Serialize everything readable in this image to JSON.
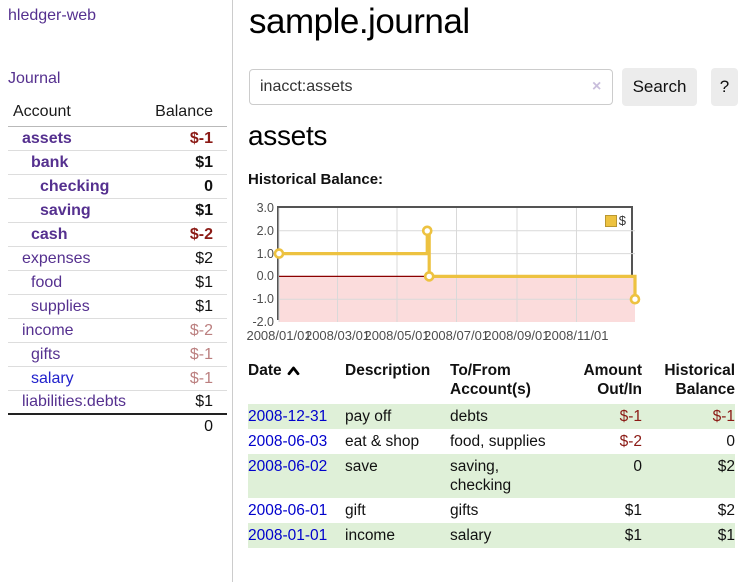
{
  "sidebar": {
    "app_title": "hledger-web",
    "nav": {
      "journal": "Journal"
    },
    "table": {
      "col_account": "Account",
      "col_balance": "Balance",
      "accounts": [
        {
          "name": "assets",
          "balance": "$-1"
        },
        {
          "name": "bank",
          "balance": "$1"
        },
        {
          "name": "checking",
          "balance": "0"
        },
        {
          "name": "saving",
          "balance": "$1"
        },
        {
          "name": "cash",
          "balance": "$-2"
        },
        {
          "name": "expenses",
          "balance": "$2"
        },
        {
          "name": "food",
          "balance": "$1"
        },
        {
          "name": "supplies",
          "balance": "$1"
        },
        {
          "name": "income",
          "balance": "$-2"
        },
        {
          "name": "gifts",
          "balance": "$-1"
        },
        {
          "name": "salary",
          "balance": "$-1"
        },
        {
          "name": "liabilities:debts",
          "balance": "$1"
        }
      ],
      "total": "0"
    }
  },
  "main": {
    "title": "sample.journal",
    "search": {
      "value": "inacct:assets",
      "clear_icon": "×",
      "search_button": "Search",
      "help_button": "?"
    },
    "account_heading": "assets"
  },
  "chart_data": {
    "type": "line",
    "style": "step",
    "title": "Historical Balance:",
    "xlabel": "",
    "ylabel": "",
    "grid": true,
    "ylim": [
      -2,
      3
    ],
    "x_range": [
      "2008-01-01",
      "2008-12-31"
    ],
    "series": [
      {
        "name": "$",
        "color": "#edc240",
        "points": [
          [
            "2008-01-01",
            1
          ],
          [
            "2008-06-01",
            2
          ],
          [
            "2008-06-03",
            0
          ],
          [
            "2008-12-31",
            -1
          ]
        ]
      }
    ],
    "x_ticks": [
      {
        "date": "2008-01-01",
        "label": "2008/01/01"
      },
      {
        "date": "2008-03-01",
        "label": "2008/03/01"
      },
      {
        "date": "2008-05-01",
        "label": "2008/05/01"
      },
      {
        "date": "2008-07-01",
        "label": "2008/07/01"
      },
      {
        "date": "2008-09-01",
        "label": "2008/09/01"
      },
      {
        "date": "2008-11-01",
        "label": "2008/11/01"
      }
    ],
    "y_ticks": [
      {
        "v": 3,
        "label": "3.0"
      },
      {
        "v": 2,
        "label": "2.0"
      },
      {
        "v": 1,
        "label": "1.0"
      },
      {
        "v": 0,
        "label": "0.0"
      },
      {
        "v": -1,
        "label": "-1.0"
      },
      {
        "v": -2,
        "label": "-2.0"
      }
    ],
    "legend": {
      "label": "$",
      "position": "top-right",
      "swatch_color": "#edc240"
    },
    "zero_line_color": "#8b0000",
    "negative_fill_color": "#fbdcdc"
  },
  "register": {
    "headers": {
      "date": "Date",
      "description": "Description",
      "tofrom_line1": "To/From",
      "tofrom_line2": "Account(s)",
      "amount_line1": "Amount",
      "amount_line2": "Out/In",
      "balance_line1": "Historical",
      "balance_line2": "Balance"
    },
    "sort_icon": "chevron-up",
    "rows": [
      {
        "date": "2008-12-31",
        "description": "pay off",
        "accounts": "debts",
        "amount": "$-1",
        "balance": "$-1"
      },
      {
        "date": "2008-06-03",
        "description": "eat & shop",
        "accounts": "food, supplies",
        "amount": "$-2",
        "balance": "0"
      },
      {
        "date": "2008-06-02",
        "description": "save",
        "accounts": "saving, checking",
        "amount": "0",
        "balance": "$2"
      },
      {
        "date": "2008-06-01",
        "description": "gift",
        "accounts": "gifts",
        "amount": "$1",
        "balance": "$2"
      },
      {
        "date": "2008-01-01",
        "description": "income",
        "accounts": "salary",
        "amount": "$1",
        "balance": "$1"
      }
    ]
  },
  "colors": {
    "link_purple": "#55308f",
    "link_blue": "#2222cc",
    "date_blue": "#0000cc",
    "negative_strong": "#8b1a15",
    "negative_faded": "#bb7f7f",
    "row_green": "#dff0d8",
    "series_gold": "#edc240"
  }
}
